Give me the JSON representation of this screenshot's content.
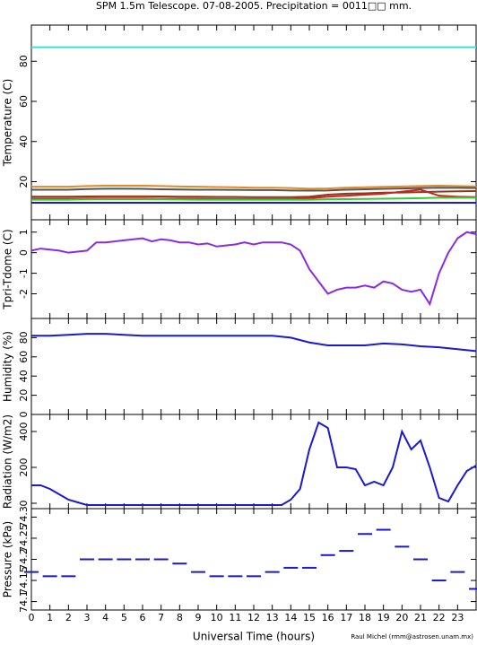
{
  "chart_data": [
    {
      "type": "line",
      "title": "SPM 1.5m Telescope. 07-08-2005. Precipitation = 0011□□ mm.",
      "ylabel": "Temperature (C)",
      "x": [
        0,
        1,
        2,
        3,
        4,
        5,
        6,
        7,
        8,
        9,
        10,
        11,
        12,
        13,
        14,
        15,
        16,
        17,
        18,
        19,
        20,
        21,
        22,
        23,
        24
      ],
      "xlim": [
        0,
        24
      ],
      "ylim": [
        1,
        98
      ],
      "yticks": [
        20,
        40,
        60,
        80
      ],
      "series": [
        {
          "color": "#33e0e0",
          "values": [
            87,
            87,
            87,
            87,
            87,
            87,
            87,
            87,
            87,
            87,
            87,
            87,
            87,
            87,
            87,
            87,
            87,
            87,
            87,
            87,
            87,
            87,
            87,
            87,
            87
          ]
        },
        {
          "color": "#e08a2a",
          "values": [
            17.5,
            17.5,
            17.5,
            17.8,
            18,
            18,
            18,
            17.8,
            17.6,
            17.5,
            17.3,
            17.2,
            17,
            17,
            16.8,
            16.5,
            16.6,
            17,
            17.2,
            17.4,
            17.6,
            17.8,
            18,
            17.8,
            17.6
          ]
        },
        {
          "color": "#555555",
          "values": [
            16,
            16,
            16,
            16.3,
            16.5,
            16.5,
            16.4,
            16.2,
            16.1,
            16,
            16,
            15.9,
            15.8,
            15.8,
            15.6,
            15.5,
            15.6,
            16,
            16.2,
            16.4,
            16.6,
            16.8,
            17,
            16.9,
            16.8
          ]
        },
        {
          "color": "#8b3a1a",
          "values": [
            12.5,
            12.5,
            12.5,
            12.6,
            12.7,
            12.7,
            12.7,
            12.6,
            12.5,
            12.5,
            12.4,
            12.4,
            12.3,
            12.3,
            12.3,
            12.5,
            13.5,
            14,
            14.2,
            14.5,
            14.6,
            14.8,
            15,
            15.2,
            15.3
          ]
        },
        {
          "color": "#d02020",
          "values": [
            11.5,
            11.5,
            11.5,
            11.6,
            11.6,
            11.6,
            11.6,
            11.5,
            11.5,
            11.5,
            11.4,
            11.4,
            11.4,
            11.4,
            11.4,
            11.8,
            12.5,
            13,
            13.5,
            14,
            15,
            16,
            13,
            12.5,
            12.3
          ]
        },
        {
          "color": "#33cc33",
          "values": [
            11,
            11,
            11,
            11.2,
            11.3,
            11.3,
            11.3,
            11.2,
            11.1,
            11,
            11,
            11,
            11,
            11,
            11,
            11,
            11.2,
            11.3,
            11.4,
            11.5,
            11.6,
            11.8,
            12,
            12,
            12
          ]
        },
        {
          "color": "#1a1acc",
          "values": [
            9.5,
            9.5,
            9.5,
            9.5,
            9.5,
            9.5,
            9.5,
            9.5,
            9.5,
            9.5,
            9.5,
            9.5,
            9.5,
            9.5,
            9.5,
            9.5,
            9.5,
            9.5,
            9.5,
            9.5,
            9.5,
            9.5,
            9.5,
            9.5,
            9.5
          ]
        }
      ]
    },
    {
      "type": "line",
      "ylabel": "Tpri-Tdome (C)",
      "x": [
        0,
        0.5,
        1,
        1.5,
        2,
        2.5,
        3,
        3.5,
        4,
        4.5,
        5,
        5.5,
        6,
        6.5,
        7,
        7.5,
        8,
        8.5,
        9,
        9.5,
        10,
        10.5,
        11,
        11.5,
        12,
        12.5,
        13,
        13.5,
        14,
        14.5,
        15,
        15.5,
        16,
        16.5,
        17,
        17.5,
        18,
        18.5,
        19,
        19.5,
        20,
        20.5,
        21,
        21.5,
        22,
        22.5,
        23,
        23.5,
        24
      ],
      "xlim": [
        0,
        24
      ],
      "ylim": [
        -3.2,
        1.6
      ],
      "yticks": [
        -2,
        -1,
        0,
        1
      ],
      "series": [
        {
          "color": "#8a2be2",
          "values": [
            0.1,
            0.2,
            0.15,
            0.1,
            0,
            0.05,
            0.1,
            0.5,
            0.5,
            0.55,
            0.6,
            0.65,
            0.7,
            0.55,
            0.65,
            0.6,
            0.5,
            0.5,
            0.4,
            0.45,
            0.3,
            0.35,
            0.4,
            0.5,
            0.4,
            0.5,
            0.5,
            0.5,
            0.4,
            0.1,
            -0.8,
            -1.4,
            -2,
            -1.8,
            -1.7,
            -1.7,
            -1.6,
            -1.7,
            -1.4,
            -1.5,
            -1.8,
            -1.9,
            -1.8,
            -2.5,
            -1,
            0,
            0.7,
            1,
            0.9
          ]
        }
      ]
    },
    {
      "type": "line",
      "ylabel": "Humidity (%)",
      "x": [
        0,
        1,
        2,
        3,
        4,
        5,
        6,
        7,
        8,
        9,
        10,
        11,
        12,
        13,
        14,
        15,
        16,
        17,
        18,
        19,
        20,
        21,
        22,
        23,
        24
      ],
      "xlim": [
        0,
        24
      ],
      "ylim": [
        0,
        100
      ],
      "yticks": [
        0,
        20,
        40,
        60,
        80
      ],
      "series": [
        {
          "color": "#1a1acc",
          "values": [
            82,
            82,
            83,
            84,
            84,
            83,
            82,
            82,
            82,
            82,
            82,
            82,
            82,
            82,
            80,
            75,
            72,
            72,
            72,
            74,
            73,
            71,
            70,
            68,
            66
          ]
        }
      ]
    },
    {
      "type": "line",
      "ylabel": "Radiation (W/m2)",
      "x": [
        0,
        0.5,
        1,
        1.5,
        2,
        2.5,
        3,
        3.5,
        4,
        4.5,
        5,
        5.5,
        6,
        6.5,
        7,
        7.5,
        8,
        8.5,
        9,
        9.5,
        10,
        10.5,
        11,
        11.5,
        12,
        12.5,
        13,
        13.5,
        14,
        14.5,
        15,
        15.5,
        16,
        16.5,
        17,
        17.5,
        18,
        18.5,
        19,
        19.5,
        20,
        20.5,
        21,
        21.5,
        22,
        22.5,
        23,
        23.5,
        24
      ],
      "xlim": [
        0,
        24
      ],
      "ylim": [
        -30,
        495
      ],
      "yticks": [
        0,
        200,
        400
      ],
      "series": [
        {
          "color": "#1a1acc",
          "values": [
            100,
            100,
            80,
            50,
            20,
            5,
            -10,
            -10,
            -10,
            -10,
            -10,
            -10,
            -10,
            -10,
            -10,
            -10,
            -10,
            -10,
            -10,
            -10,
            -10,
            -10,
            -10,
            -10,
            -10,
            -10,
            -10,
            -10,
            20,
            80,
            300,
            450,
            420,
            200,
            200,
            190,
            100,
            120,
            100,
            200,
            400,
            300,
            350,
            200,
            30,
            10,
            100,
            180,
            210
          ]
        }
      ]
    },
    {
      "type": "scatter",
      "ylabel": "Pressure (kPa)",
      "xlabel": "Universal Time (hours)",
      "annotation": "Raul Michel (rmm@astrosen.unam.mx)",
      "x": [
        0,
        1,
        2,
        3,
        4,
        5,
        6,
        7,
        8,
        9,
        10,
        11,
        12,
        13,
        14,
        15,
        16,
        17,
        18,
        19,
        20,
        21,
        22,
        23,
        24
      ],
      "xlim": [
        0,
        24
      ],
      "ylim": [
        74.08,
        74.32
      ],
      "yticks": [
        74.1,
        74.15,
        74.2,
        74.25,
        74.3
      ],
      "xticks": [
        0,
        1,
        2,
        3,
        4,
        5,
        6,
        7,
        8,
        9,
        10,
        11,
        12,
        13,
        14,
        15,
        16,
        17,
        18,
        19,
        20,
        21,
        22,
        23
      ],
      "series": [
        {
          "color": "#1a1acc",
          "values": [
            74.17,
            74.16,
            74.16,
            74.2,
            74.2,
            74.2,
            74.2,
            74.2,
            74.19,
            74.17,
            74.16,
            74.16,
            74.16,
            74.17,
            74.18,
            74.18,
            74.21,
            74.22,
            74.26,
            74.27,
            74.23,
            74.2,
            74.15,
            74.17,
            74.13
          ]
        }
      ]
    }
  ]
}
